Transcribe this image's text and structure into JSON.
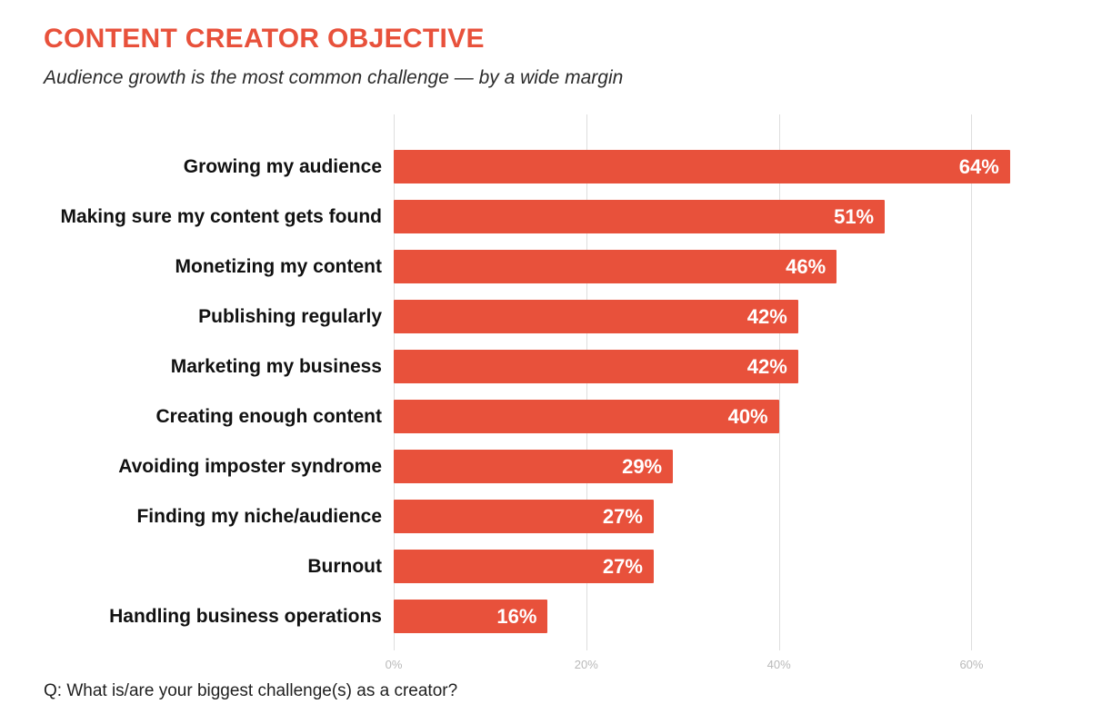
{
  "header": {
    "title": "CONTENT CREATOR OBJECTIVE",
    "subtitle": "Audience growth is the most common challenge — by a wide margin"
  },
  "footer": {
    "question": "Q: What is/are your biggest challenge(s) as a creator?"
  },
  "colors": {
    "accent": "#E8513B",
    "label_text": "#111111",
    "tick_text": "#b9b9b9",
    "gridline": "#dedede"
  },
  "chart_data": {
    "type": "bar",
    "orientation": "horizontal",
    "title": "CONTENT CREATOR OBJECTIVE",
    "subtitle": "Audience growth is the most common challenge — by a wide margin",
    "categories": [
      "Growing my audience",
      "Making sure my content gets found",
      "Monetizing my content",
      "Publishing regularly",
      "Marketing my business",
      "Creating enough content",
      "Avoiding imposter syndrome",
      "Finding my niche/audience",
      "Burnout",
      "Handling business operations"
    ],
    "values": [
      64,
      51,
      46,
      42,
      42,
      40,
      29,
      27,
      27,
      16
    ],
    "value_suffix": "%",
    "x_ticks": [
      "0%",
      "20%",
      "40%",
      "60%"
    ],
    "x_tick_values": [
      0,
      20,
      40,
      60
    ],
    "xlim": [
      0,
      66
    ],
    "bar_color": "#E8513B",
    "grid": true,
    "legend": false,
    "xlabel": "",
    "ylabel": ""
  }
}
